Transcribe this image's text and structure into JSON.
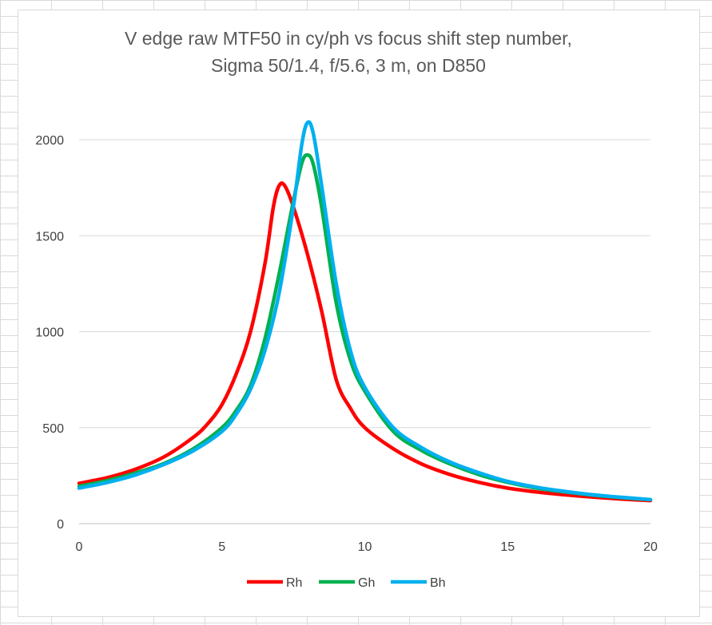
{
  "chart_data": {
    "type": "line",
    "title": "V edge raw MTF50 in cy/ph vs focus shift step number,",
    "subtitle": "Sigma 50/1.4, f/5.6, 3 m, on D850",
    "xlabel": "",
    "ylabel": "",
    "xlim": [
      0,
      20
    ],
    "ylim": [
      0,
      2000
    ],
    "x_ticks": [
      0,
      5,
      10,
      15,
      20
    ],
    "y_ticks": [
      0,
      500,
      1000,
      1500,
      2000
    ],
    "grid": "horizontal",
    "legend_position": "bottom",
    "series": [
      {
        "name": "Rh",
        "color": "#ff0000",
        "points": [
          [
            0,
            210
          ],
          [
            1,
            240
          ],
          [
            2,
            285
          ],
          [
            3,
            350
          ],
          [
            4,
            450
          ],
          [
            4.5,
            520
          ],
          [
            5,
            620
          ],
          [
            5.5,
            780
          ],
          [
            6,
            1000
          ],
          [
            6.5,
            1350
          ],
          [
            6.8,
            1650
          ],
          [
            7,
            1760
          ],
          [
            7.2,
            1760
          ],
          [
            7.5,
            1650
          ],
          [
            8,
            1400
          ],
          [
            8.5,
            1100
          ],
          [
            9,
            750
          ],
          [
            9.5,
            600
          ],
          [
            10,
            500
          ],
          [
            11,
            390
          ],
          [
            12,
            310
          ],
          [
            13,
            255
          ],
          [
            14,
            215
          ],
          [
            15,
            185
          ],
          [
            16,
            165
          ],
          [
            17,
            150
          ],
          [
            18,
            138
          ],
          [
            19,
            128
          ],
          [
            20,
            120
          ]
        ]
      },
      {
        "name": "Gh",
        "color": "#00b050",
        "points": [
          [
            0,
            195
          ],
          [
            1,
            225
          ],
          [
            2,
            265
          ],
          [
            3,
            315
          ],
          [
            4,
            390
          ],
          [
            5,
            500
          ],
          [
            5.5,
            590
          ],
          [
            6,
            720
          ],
          [
            6.5,
            960
          ],
          [
            7,
            1300
          ],
          [
            7.5,
            1680
          ],
          [
            7.8,
            1880
          ],
          [
            8,
            1920
          ],
          [
            8.2,
            1870
          ],
          [
            8.5,
            1640
          ],
          [
            9,
            1150
          ],
          [
            9.5,
            850
          ],
          [
            10,
            690
          ],
          [
            11,
            480
          ],
          [
            12,
            380
          ],
          [
            13,
            310
          ],
          [
            14,
            255
          ],
          [
            15,
            215
          ],
          [
            16,
            185
          ],
          [
            17,
            165
          ],
          [
            18,
            148
          ],
          [
            19,
            135
          ],
          [
            20,
            125
          ]
        ]
      },
      {
        "name": "Bh",
        "color": "#00b0f0",
        "points": [
          [
            0,
            185
          ],
          [
            1,
            215
          ],
          [
            2,
            255
          ],
          [
            3,
            310
          ],
          [
            4,
            380
          ],
          [
            5,
            480
          ],
          [
            5.5,
            570
          ],
          [
            6,
            700
          ],
          [
            6.5,
            900
          ],
          [
            7,
            1200
          ],
          [
            7.5,
            1650
          ],
          [
            7.8,
            1980
          ],
          [
            8,
            2090
          ],
          [
            8.2,
            2030
          ],
          [
            8.5,
            1750
          ],
          [
            9,
            1250
          ],
          [
            9.5,
            900
          ],
          [
            10,
            710
          ],
          [
            11,
            500
          ],
          [
            12,
            395
          ],
          [
            13,
            320
          ],
          [
            14,
            265
          ],
          [
            15,
            220
          ],
          [
            16,
            190
          ],
          [
            17,
            168
          ],
          [
            18,
            150
          ],
          [
            19,
            137
          ],
          [
            20,
            125
          ]
        ]
      }
    ]
  }
}
